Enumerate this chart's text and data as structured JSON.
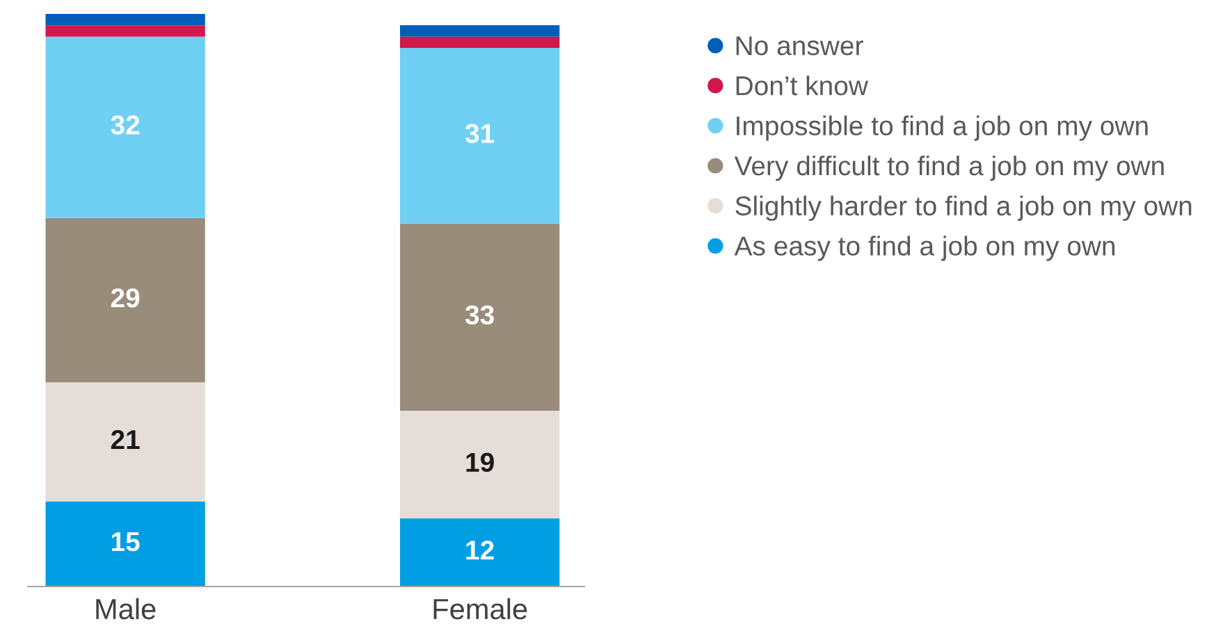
{
  "chart_data": {
    "type": "bar",
    "stacked": true,
    "categories": [
      "Male",
      "Female"
    ],
    "series": [
      {
        "name": "As easy to find a job on my own",
        "color": "#009fe3",
        "values": [
          15,
          12
        ],
        "value_labels": [
          "15",
          "12"
        ]
      },
      {
        "name": "Slightly harder to find a job on my own",
        "color": "#e5ddd7",
        "values": [
          21,
          19
        ],
        "value_labels": [
          "21",
          "19"
        ]
      },
      {
        "name": "Very difficult to find a job on my own",
        "color": "#9a8c7b",
        "values": [
          29,
          33
        ],
        "value_labels": [
          "29",
          "33"
        ]
      },
      {
        "name": "Impossible to find a job on my own",
        "color": "#70d0f3",
        "values": [
          32,
          31
        ],
        "value_labels": [
          "32",
          "31"
        ]
      },
      {
        "name": "Don’t know",
        "color": "#d0184a",
        "values": [
          2,
          2
        ],
        "value_labels": [
          null,
          null
        ]
      },
      {
        "name": "No answer",
        "color": "#005ebb",
        "values": [
          2,
          2
        ],
        "value_labels": [
          null,
          null
        ]
      }
    ],
    "legend": "right",
    "marker": "circle",
    "grid": false
  }
}
